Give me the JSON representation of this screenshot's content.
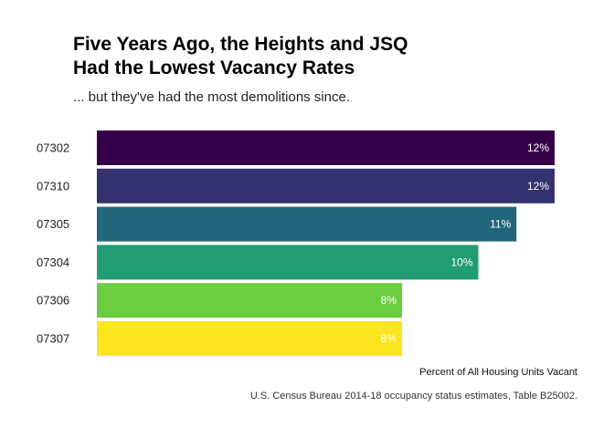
{
  "chart_data": {
    "type": "bar",
    "orientation": "horizontal",
    "title_lines": [
      "Five Years Ago, the Heights and JSQ",
      "Had the Lowest Vacancy Rates"
    ],
    "subtitle": "... but they've had the most demolitions since.",
    "xlabel": "Percent of All Housing Units Vacant",
    "ylabel": "",
    "source": "U.S. Census Bureau 2014-18 occupancy status estimates, Table B25002.",
    "categories": [
      "07302",
      "07310",
      "07305",
      "07304",
      "07306",
      "07307"
    ],
    "values": [
      12,
      12,
      11,
      10,
      8,
      8
    ],
    "data_labels": [
      "12%",
      "12%",
      "11%",
      "10%",
      "8%",
      "8%"
    ],
    "colors": [
      "#350048",
      "#33316f",
      "#21667b",
      "#229c73",
      "#6acd40",
      "#fae51f"
    ],
    "xlim": [
      0,
      12
    ],
    "grid": false,
    "legend": "none"
  }
}
